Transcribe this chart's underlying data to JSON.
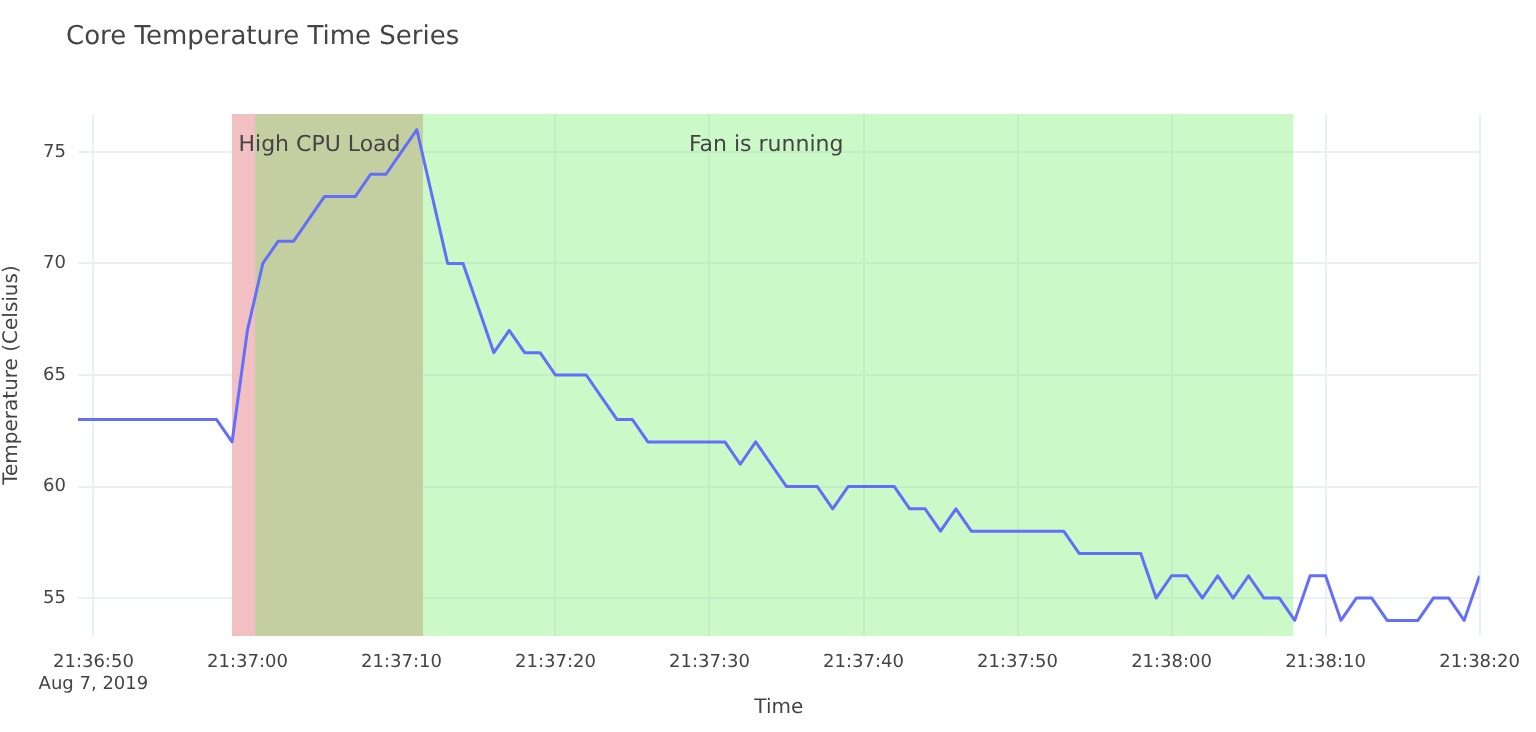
{
  "chart_data": {
    "type": "line",
    "title": "Core Temperature Time Series",
    "xlabel": "Time",
    "ylabel": "Temperature (Celsius)",
    "series": [
      {
        "color": "#636efa",
        "x": [
          "2019-08-07T21:36:49",
          "2019-08-07T21:36:50",
          "2019-08-07T21:36:51",
          "2019-08-07T21:36:52",
          "2019-08-07T21:36:53",
          "2019-08-07T21:36:54",
          "2019-08-07T21:36:55",
          "2019-08-07T21:36:56",
          "2019-08-07T21:36:57",
          "2019-08-07T21:36:58",
          "2019-08-07T21:36:59",
          "2019-08-07T21:37:00",
          "2019-08-07T21:37:01",
          "2019-08-07T21:37:02",
          "2019-08-07T21:37:03",
          "2019-08-07T21:37:04",
          "2019-08-07T21:37:05",
          "2019-08-07T21:37:06",
          "2019-08-07T21:37:07",
          "2019-08-07T21:37:08",
          "2019-08-07T21:37:09",
          "2019-08-07T21:37:10",
          "2019-08-07T21:37:11",
          "2019-08-07T21:37:12",
          "2019-08-07T21:37:13",
          "2019-08-07T21:37:14",
          "2019-08-07T21:37:15",
          "2019-08-07T21:37:16",
          "2019-08-07T21:37:17",
          "2019-08-07T21:37:18",
          "2019-08-07T21:37:19",
          "2019-08-07T21:37:20",
          "2019-08-07T21:37:21",
          "2019-08-07T21:37:22",
          "2019-08-07T21:37:23",
          "2019-08-07T21:37:24",
          "2019-08-07T21:37:25",
          "2019-08-07T21:37:26",
          "2019-08-07T21:37:27",
          "2019-08-07T21:37:28",
          "2019-08-07T21:37:29",
          "2019-08-07T21:37:30",
          "2019-08-07T21:37:31",
          "2019-08-07T21:37:32",
          "2019-08-07T21:37:33",
          "2019-08-07T21:37:34",
          "2019-08-07T21:37:35",
          "2019-08-07T21:37:36",
          "2019-08-07T21:37:37",
          "2019-08-07T21:37:38",
          "2019-08-07T21:37:39",
          "2019-08-07T21:37:40",
          "2019-08-07T21:37:41",
          "2019-08-07T21:37:42",
          "2019-08-07T21:37:43",
          "2019-08-07T21:37:44",
          "2019-08-07T21:37:45",
          "2019-08-07T21:37:46",
          "2019-08-07T21:37:47",
          "2019-08-07T21:37:48",
          "2019-08-07T21:37:49",
          "2019-08-07T21:37:50",
          "2019-08-07T21:37:51",
          "2019-08-07T21:37:52",
          "2019-08-07T21:37:53",
          "2019-08-07T21:37:54",
          "2019-08-07T21:37:55",
          "2019-08-07T21:37:56",
          "2019-08-07T21:37:57",
          "2019-08-07T21:37:58",
          "2019-08-07T21:37:59",
          "2019-08-07T21:38:00",
          "2019-08-07T21:38:01",
          "2019-08-07T21:38:02",
          "2019-08-07T21:38:03",
          "2019-08-07T21:38:04",
          "2019-08-07T21:38:05",
          "2019-08-07T21:38:06",
          "2019-08-07T21:38:07",
          "2019-08-07T21:38:08",
          "2019-08-07T21:38:09",
          "2019-08-07T21:38:10",
          "2019-08-07T21:38:11",
          "2019-08-07T21:38:12",
          "2019-08-07T21:38:13",
          "2019-08-07T21:38:14",
          "2019-08-07T21:38:15",
          "2019-08-07T21:38:16",
          "2019-08-07T21:38:17",
          "2019-08-07T21:38:18",
          "2019-08-07T21:38:19",
          "2019-08-07T21:38:20"
        ],
        "values": [
          63,
          63,
          63,
          63,
          63,
          63,
          63,
          63,
          63,
          63,
          62,
          67,
          70,
          71,
          71,
          72,
          73,
          73,
          73,
          74,
          74,
          75,
          76,
          73,
          70,
          70,
          68,
          66,
          67,
          66,
          66,
          65,
          65,
          65,
          64,
          63,
          63,
          62,
          62,
          62,
          62,
          62,
          62,
          61,
          62,
          61,
          60,
          60,
          60,
          59,
          60,
          60,
          60,
          60,
          59,
          59,
          58,
          59,
          58,
          58,
          58,
          58,
          58,
          58,
          58,
          57,
          57,
          57,
          57,
          57,
          55,
          56,
          56,
          55,
          56,
          55,
          56,
          55,
          55,
          54,
          56,
          56,
          54,
          55,
          55,
          54,
          54,
          54,
          55,
          55,
          54,
          56
        ]
      }
    ],
    "xlim": [
      "2019-08-07T21:36:49",
      "2019-08-07T21:38:20"
    ],
    "xticks": [
      {
        "value": "2019-08-07T21:36:50",
        "label": "21:36:50\nAug 7, 2019"
      },
      {
        "value": "2019-08-07T21:37:00",
        "label": "21:37:00"
      },
      {
        "value": "2019-08-07T21:37:10",
        "label": "21:37:10"
      },
      {
        "value": "2019-08-07T21:37:20",
        "label": "21:37:20"
      },
      {
        "value": "2019-08-07T21:37:30",
        "label": "21:37:30"
      },
      {
        "value": "2019-08-07T21:37:40",
        "label": "21:37:40"
      },
      {
        "value": "2019-08-07T21:37:50",
        "label": "21:37:50"
      },
      {
        "value": "2019-08-07T21:38:00",
        "label": "21:38:00"
      },
      {
        "value": "2019-08-07T21:38:10",
        "label": "21:38:10"
      },
      {
        "value": "2019-08-07T21:38:20",
        "label": "21:38:20"
      }
    ],
    "ylim": [
      53.3,
      76.7
    ],
    "yticks": [
      55,
      60,
      65,
      70,
      75
    ],
    "grid": true,
    "bands": [
      {
        "axis": "x",
        "from": "2019-08-07T21:36:59",
        "to": "2019-08-07T21:37:11.4",
        "label": "High CPU Load",
        "color": "#f2bfc3"
      },
      {
        "axis": "x",
        "from": "2019-08-07T21:37:00.5",
        "to": "2019-08-07T21:38:07.9",
        "label": "Fan is running",
        "color": "#6dee62"
      }
    ]
  }
}
